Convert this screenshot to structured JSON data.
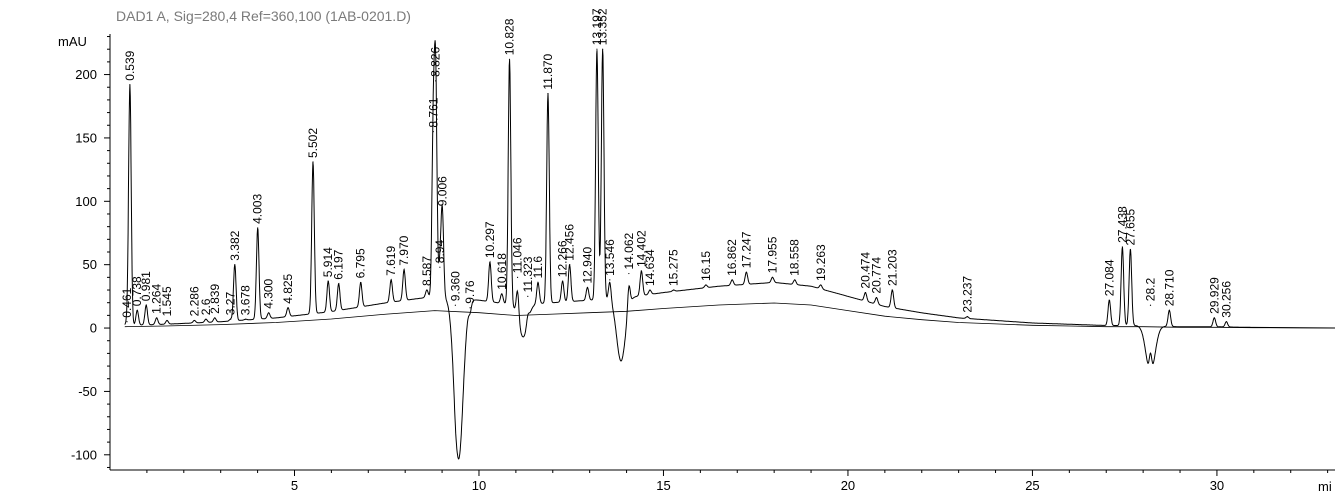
{
  "chart_data": {
    "type": "line",
    "title": "DAD1 A, Sig=280,4 Ref=360,100 (1AB-0201.D)",
    "ylabel": "mAU",
    "xlabel": "mi",
    "xlim": [
      0,
      33.2
    ],
    "ylim": [
      -112,
      232
    ],
    "x_ticks": [
      5,
      10,
      15,
      20,
      25,
      30
    ],
    "x_tick_labels": [
      "5",
      "10",
      "15",
      "20",
      "25",
      "30"
    ],
    "y_ticks": [
      200,
      150,
      100,
      50,
      0,
      -50,
      -100
    ],
    "y_tick_labels": [
      "200",
      "150",
      "100",
      "50",
      "0",
      "-50",
      "-100"
    ],
    "baseline": [
      [
        0.4,
        2
      ],
      [
        1.5,
        3
      ],
      [
        3.0,
        5
      ],
      [
        4.5,
        8
      ],
      [
        6.0,
        13
      ],
      [
        7.5,
        20
      ],
      [
        8.8,
        25
      ],
      [
        10.0,
        22
      ],
      [
        11.0,
        18
      ],
      [
        12.0,
        20
      ],
      [
        13.0,
        22
      ],
      [
        14.0,
        24
      ],
      [
        15.0,
        28
      ],
      [
        16.5,
        33
      ],
      [
        18.0,
        36
      ],
      [
        19.0,
        33
      ],
      [
        20.0,
        25
      ],
      [
        21.0,
        17
      ],
      [
        22.0,
        12
      ],
      [
        23.0,
        8
      ],
      [
        24.0,
        6
      ],
      [
        25.0,
        4
      ],
      [
        26.0,
        3
      ],
      [
        27.0,
        2
      ],
      [
        28.0,
        2
      ],
      [
        29.0,
        1
      ],
      [
        30.0,
        1
      ],
      [
        31.0,
        0.5
      ],
      [
        33.2,
        0
      ]
    ],
    "dips": [
      {
        "x": 9.45,
        "y": -103
      },
      {
        "x": 11.2,
        "y": -7
      },
      {
        "x": 13.85,
        "y": -26
      },
      {
        "x": 28.2,
        "y": -36
      }
    ],
    "peaks": [
      {
        "x": 0.461,
        "y": 5,
        "label": "0.461"
      },
      {
        "x": 0.539,
        "y": 192,
        "label": "0.539"
      },
      {
        "x": 0.738,
        "y": 14,
        "label": "0.738"
      },
      {
        "x": 0.981,
        "y": 18,
        "label": "0.981"
      },
      {
        "x": 1.264,
        "y": 8,
        "label": "1.264"
      },
      {
        "x": 1.545,
        "y": 6,
        "label": "1.545"
      },
      {
        "x": 2.286,
        "y": 6,
        "label": "2.286"
      },
      {
        "x": 2.6,
        "y": 7,
        "label": "2.6"
      },
      {
        "x": 2.839,
        "y": 8,
        "label": "2.839"
      },
      {
        "x": 3.27,
        "y": 7,
        "label": "3.27"
      },
      {
        "x": 3.382,
        "y": 50,
        "label": "3.382"
      },
      {
        "x": 3.678,
        "y": 7,
        "label": "3.678"
      },
      {
        "x": 4.003,
        "y": 79,
        "label": "4.003"
      },
      {
        "x": 4.3,
        "y": 12,
        "label": "4.300"
      },
      {
        "x": 4.825,
        "y": 16,
        "label": "4.825"
      },
      {
        "x": 5.502,
        "y": 131,
        "label": "5.502"
      },
      {
        "x": 5.914,
        "y": 37,
        "label": "5.914"
      },
      {
        "x": 6.197,
        "y": 35,
        "label": "6.197"
      },
      {
        "x": 6.795,
        "y": 36,
        "label": "6.795"
      },
      {
        "x": 7.619,
        "y": 38,
        "label": "7.619"
      },
      {
        "x": 7.97,
        "y": 46,
        "label": "7.970"
      },
      {
        "x": 8.587,
        "y": 30,
        "label": "8.587"
      },
      {
        "x": 8.761,
        "y": 155,
        "label": "8.761"
      },
      {
        "x": 8.826,
        "y": 195,
        "label": "8.826"
      },
      {
        "x": 8.94,
        "y": 48,
        "label": "8.94"
      },
      {
        "x": 9.006,
        "y": 93,
        "label": "9.006"
      },
      {
        "x": 9.36,
        "y": 18,
        "label": "9.360"
      },
      {
        "x": 9.76,
        "y": 16,
        "label": "9.76"
      },
      {
        "x": 10.297,
        "y": 52,
        "label": "10.297"
      },
      {
        "x": 10.618,
        "y": 27,
        "label": "10.618"
      },
      {
        "x": 10.828,
        "y": 212,
        "label": "10.828"
      },
      {
        "x": 11.046,
        "y": 40,
        "label": "11.046"
      },
      {
        "x": 11.323,
        "y": 25,
        "label": "11.323"
      },
      {
        "x": 11.6,
        "y": 36,
        "label": "11.6"
      },
      {
        "x": 11.87,
        "y": 185,
        "label": "11.870"
      },
      {
        "x": 12.266,
        "y": 37,
        "label": "12.266"
      },
      {
        "x": 12.456,
        "y": 50,
        "label": "12.456"
      },
      {
        "x": 12.94,
        "y": 32,
        "label": "12.940"
      },
      {
        "x": 13.197,
        "y": 220,
        "label": "13.197"
      },
      {
        "x": 13.352,
        "y": 220,
        "label": "13.352"
      },
      {
        "x": 13.546,
        "y": 38,
        "label": "13.546"
      },
      {
        "x": 14.062,
        "y": 43,
        "label": "14.062"
      },
      {
        "x": 14.402,
        "y": 45,
        "label": "14.402"
      },
      {
        "x": 14.634,
        "y": 30,
        "label": "14.634"
      },
      {
        "x": 15.275,
        "y": 30,
        "label": "15.275"
      },
      {
        "x": 16.15,
        "y": 34,
        "label": "16.15"
      },
      {
        "x": 16.862,
        "y": 38,
        "label": "16.862"
      },
      {
        "x": 17.247,
        "y": 44,
        "label": "17.247"
      },
      {
        "x": 17.955,
        "y": 40,
        "label": "17.955"
      },
      {
        "x": 18.558,
        "y": 38,
        "label": "18.558"
      },
      {
        "x": 19.263,
        "y": 34,
        "label": "19.263"
      },
      {
        "x": 20.474,
        "y": 28,
        "label": "20.474"
      },
      {
        "x": 20.774,
        "y": 24,
        "label": "20.774"
      },
      {
        "x": 21.203,
        "y": 30,
        "label": "21.203"
      },
      {
        "x": 23.237,
        "y": 9,
        "label": "23.237"
      },
      {
        "x": 27.084,
        "y": 22,
        "label": "27.084"
      },
      {
        "x": 27.438,
        "y": 64,
        "label": "27.438"
      },
      {
        "x": 27.655,
        "y": 62,
        "label": "27.655"
      },
      {
        "x": 28.2,
        "y": 18,
        "label": "28.2"
      },
      {
        "x": 28.71,
        "y": 14,
        "label": "28.710"
      },
      {
        "x": 29.929,
        "y": 8,
        "label": "29.929"
      },
      {
        "x": 30.256,
        "y": 5,
        "label": "30.256"
      }
    ]
  }
}
